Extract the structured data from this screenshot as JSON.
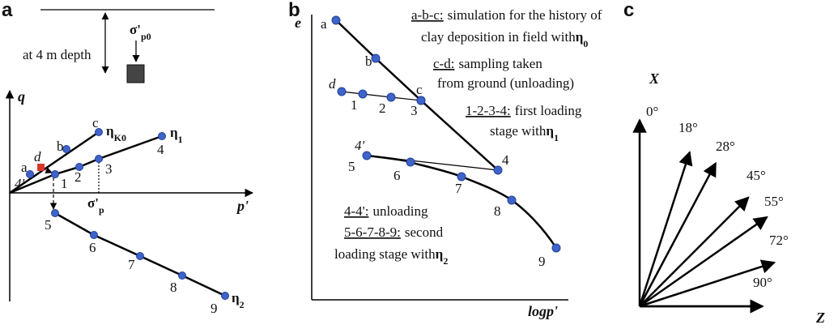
{
  "panel_a": {
    "label": "a",
    "depth_note": "at 4 m depth",
    "stress": {
      "base": "σ'",
      "sub": "p0"
    },
    "y_axis": "q",
    "x_axis": "p'",
    "line_k0": {
      "base": "η",
      "sub": "K0"
    },
    "line_1": {
      "base": "η",
      "sub": "1"
    },
    "line_2": {
      "base": "η",
      "sub": "2"
    },
    "preconsolidation": {
      "base": "σ'",
      "sub": "p"
    },
    "points": [
      "a",
      "b",
      "c",
      "d",
      "4'",
      "1",
      "2",
      "3",
      "4",
      "5",
      "6",
      "7",
      "8",
      "9"
    ]
  },
  "panel_b": {
    "label": "b",
    "y_axis": "e",
    "x_axis": "logp'",
    "points": [
      "a",
      "b",
      "c",
      "d",
      "1",
      "2",
      "3",
      "4",
      "4'",
      "5",
      "6",
      "7",
      "8",
      "9"
    ],
    "notes": [
      {
        "key": "a-b-c:",
        "text": "simulation for the history of"
      },
      {
        "text": "clay deposition in field with",
        "symbol": "η",
        "sub": "0"
      },
      {
        "key": "c-d:",
        "text": "sampling taken"
      },
      {
        "text": "from ground (unloading)"
      },
      {
        "key": "1-2-3-4:",
        "text": "first loading"
      },
      {
        "text": "stage with",
        "symbol": "η",
        "sub": "1"
      },
      {
        "key": "4-4':",
        "text": "unloading"
      },
      {
        "key": "5-6-7-8-9:",
        "text": "second"
      },
      {
        "text": "loading stage with",
        "symbol": "η",
        "sub": "2"
      }
    ]
  },
  "panel_c": {
    "label": "c",
    "y_axis": "X",
    "x_axis": "Z",
    "angles": [
      {
        "value": 0,
        "label": "0°"
      },
      {
        "value": 18,
        "label": "18°"
      },
      {
        "value": 28,
        "label": "28°"
      },
      {
        "value": 45,
        "label": "45°"
      },
      {
        "value": 55,
        "label": "55°"
      },
      {
        "value": 72,
        "label": "72°"
      },
      {
        "value": 90,
        "label": "90°"
      }
    ]
  }
}
